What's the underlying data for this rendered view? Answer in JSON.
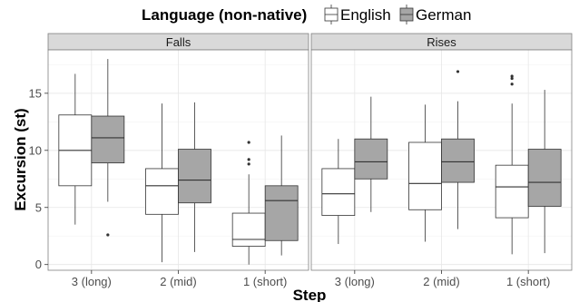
{
  "chart_data": {
    "type": "boxplot",
    "legend": {
      "title": "Language (non-native)",
      "entries": [
        {
          "label": "English",
          "fill": "#ffffff"
        },
        {
          "label": "German",
          "fill": "#a6a6a6"
        }
      ],
      "placement": "top"
    },
    "xlabel": "Step",
    "ylabel": "Excursion (st)",
    "ylim": [
      -0.5,
      18.8
    ],
    "yticks": [
      0,
      5,
      10,
      15
    ],
    "categories": [
      "3 (long)",
      "2 (mid)",
      "1 (short)"
    ],
    "grid": true,
    "facets": [
      {
        "label": "Falls",
        "groups": [
          {
            "category": "3 (long)",
            "boxes": [
              {
                "series": "English",
                "min": 3.5,
                "q1": 6.9,
                "median": 10.0,
                "q3": 13.1,
                "max": 16.7,
                "outliers": []
              },
              {
                "series": "German",
                "min": 5.5,
                "q1": 8.9,
                "median": 11.1,
                "q3": 13.0,
                "max": 18.0,
                "outliers": [
                  2.6
                ]
              }
            ]
          },
          {
            "category": "2 (mid)",
            "boxes": [
              {
                "series": "English",
                "min": 0.2,
                "q1": 4.4,
                "median": 6.9,
                "q3": 8.4,
                "max": 14.1,
                "outliers": []
              },
              {
                "series": "German",
                "min": 1.1,
                "q1": 5.4,
                "median": 7.4,
                "q3": 10.1,
                "max": 14.2,
                "outliers": []
              }
            ]
          },
          {
            "category": "1 (short)",
            "boxes": [
              {
                "series": "English",
                "min": 0.0,
                "q1": 1.6,
                "median": 2.2,
                "q3": 4.5,
                "max": 7.9,
                "outliers": [
                  8.8,
                  9.2,
                  10.7
                ]
              },
              {
                "series": "German",
                "min": 0.8,
                "q1": 2.1,
                "median": 5.6,
                "q3": 6.9,
                "max": 11.3,
                "outliers": []
              }
            ]
          }
        ]
      },
      {
        "label": "Rises",
        "groups": [
          {
            "category": "3 (long)",
            "boxes": [
              {
                "series": "English",
                "min": 1.8,
                "q1": 4.3,
                "median": 6.2,
                "q3": 8.4,
                "max": 11.0,
                "outliers": []
              },
              {
                "series": "German",
                "min": 4.6,
                "q1": 7.5,
                "median": 9.0,
                "q3": 11.0,
                "max": 14.7,
                "outliers": []
              }
            ]
          },
          {
            "category": "2 (mid)",
            "boxes": [
              {
                "series": "English",
                "min": 2.0,
                "q1": 4.8,
                "median": 7.1,
                "q3": 10.7,
                "max": 14.0,
                "outliers": []
              },
              {
                "series": "German",
                "min": 3.1,
                "q1": 7.2,
                "median": 9.0,
                "q3": 11.0,
                "max": 14.3,
                "outliers": [
                  16.9
                ]
              }
            ]
          },
          {
            "category": "1 (short)",
            "boxes": [
              {
                "series": "English",
                "min": 0.9,
                "q1": 4.1,
                "median": 6.8,
                "q3": 8.7,
                "max": 14.1,
                "outliers": [
                  15.8,
                  16.3,
                  16.5
                ]
              },
              {
                "series": "German",
                "min": 1.0,
                "q1": 5.1,
                "median": 7.2,
                "q3": 10.1,
                "max": 15.3,
                "outliers": []
              }
            ]
          }
        ]
      }
    ]
  }
}
